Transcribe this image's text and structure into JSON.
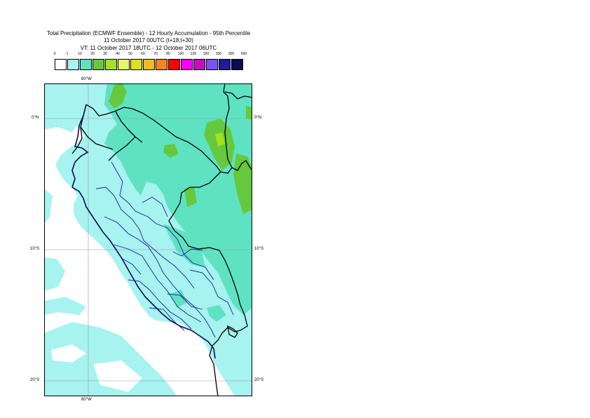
{
  "header": {
    "title_line1": "Total Precipitation (ECMWF Ensemble) - 12 Hourly Accumulation - 95th Percentile",
    "title_line2": "11 October 2017 00UTC (t+18,t+30)",
    "title_line3": "VT: 11 October 2017 18UTC - 12 October 2017 06UTC"
  },
  "legend": {
    "thresholds": [
      "0",
      "1",
      "10",
      "20",
      "30",
      "40",
      "50",
      "60",
      "70",
      "80",
      "100",
      "125",
      "150",
      "200",
      "300",
      "500"
    ],
    "colors": [
      "#ffffff",
      "#a6f3f0",
      "#5fe2c2",
      "#66c83c",
      "#a0e31e",
      "#e6f56e",
      "#dde11e",
      "#f0bc1e",
      "#f5861e",
      "#ff0000",
      "#ff00ff",
      "#c010c0",
      "#7b52f0",
      "#1c1c9c",
      "#0c0c50"
    ]
  },
  "map": {
    "lon_label_top": "80°W",
    "lon_label_bottom": "80°W",
    "lat_labels_left": [
      "0°N",
      "10°S",
      "20°S"
    ],
    "lat_labels_right": [
      "0°N",
      "10°S",
      "20°S"
    ],
    "colors": {
      "national_border": "#000000",
      "regional_border": "#1a1aa0",
      "coastline": "#0c0c50",
      "gridline": "#9a9a9a"
    }
  }
}
